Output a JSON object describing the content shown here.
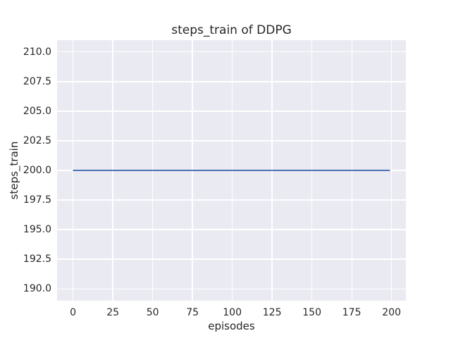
{
  "chart_data": {
    "type": "line",
    "title": "steps_train of DDPG",
    "xlabel": "episodes",
    "ylabel": "steps_train",
    "xlim": [
      -10,
      209
    ],
    "ylim": [
      189,
      211
    ],
    "x_ticks": [
      0,
      25,
      50,
      75,
      100,
      125,
      150,
      175,
      200
    ],
    "x_tick_labels": [
      "0",
      "25",
      "50",
      "75",
      "100",
      "125",
      "150",
      "175",
      "200"
    ],
    "y_ticks": [
      190,
      192.5,
      195,
      197.5,
      200,
      202.5,
      205,
      207.5,
      210
    ],
    "y_tick_labels": [
      "190.0",
      "192.5",
      "195.0",
      "197.5",
      "200.0",
      "202.5",
      "205.0",
      "207.5",
      "210.0"
    ],
    "grid": true,
    "legend": false,
    "style": "seaborn-darkgrid",
    "colors": {
      "plot_background": "#EAEAF2",
      "grid_color": "#FFFFFF",
      "text_color": "#262626",
      "figure_background": "#FFFFFF"
    },
    "series": [
      {
        "name": "steps_train",
        "color": "#4C72B0",
        "line_width": 2,
        "x": [
          0,
          199
        ],
        "y": [
          200,
          200
        ]
      }
    ]
  }
}
